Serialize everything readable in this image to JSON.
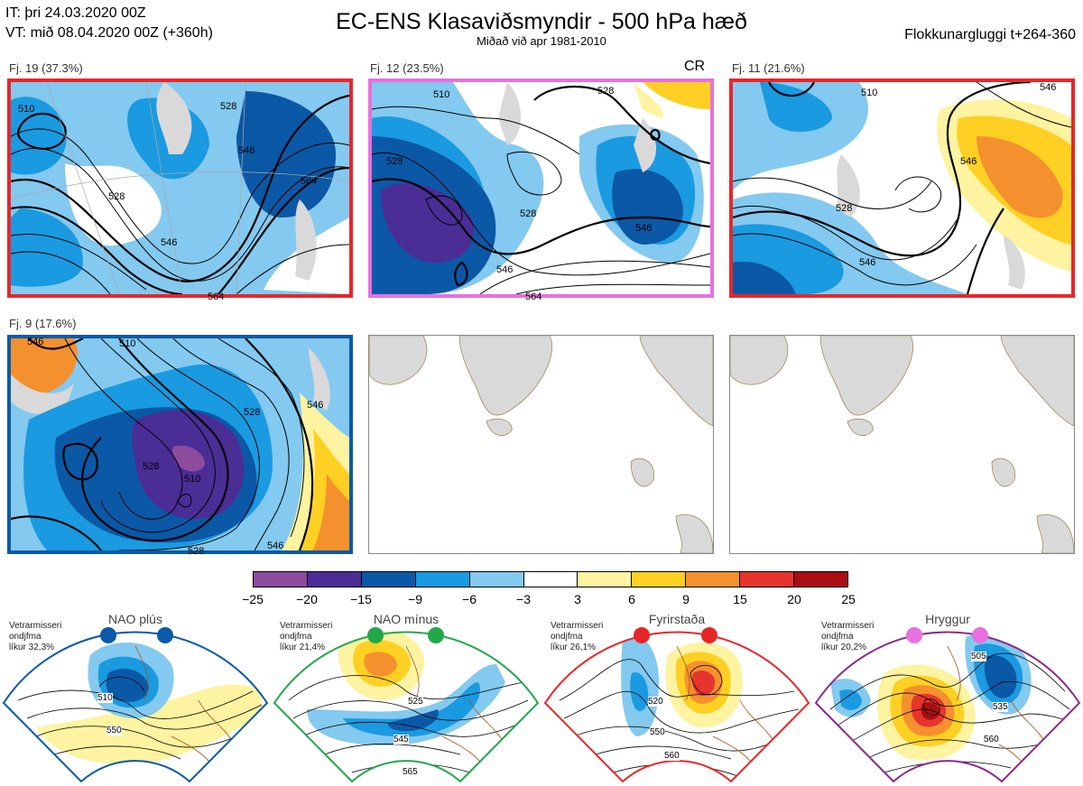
{
  "header": {
    "it_line": "IT: þri 24.03.2020 00Z",
    "vt_line": "VT: mið 08.04.2020 00Z  (+360h)",
    "title": "EC-ENS Klasaviðsmyndir - 500 hPa hæð",
    "subtitle": "Miðað við apr 1981-2010",
    "window": "Flokkunargluggi t+264-360"
  },
  "clusters": [
    {
      "label": "Fj. 19 (37.3%)",
      "frame_color": "#e8262a",
      "contours": [
        "510",
        "528",
        "546",
        "564",
        "528",
        "546",
        "564"
      ],
      "extra": ""
    },
    {
      "label": "Fj. 12 (23.5%)",
      "frame_color": "#e870e0",
      "contours": [
        "510",
        "528",
        "528",
        "528",
        "546",
        "546",
        "564"
      ],
      "extra": "CR"
    },
    {
      "label": "Fj. 11 (21.6%)",
      "frame_color": "#e8262a",
      "contours": [
        "510",
        "546",
        "528",
        "546",
        "546"
      ],
      "extra": ""
    },
    {
      "label": "Fj. 9 (17.6%)",
      "frame_color": "#0a5aa8",
      "contours": [
        "546",
        "510",
        "528",
        "528",
        "510",
        "528",
        "546",
        "546"
      ],
      "extra": ""
    }
  ],
  "colorbar": {
    "colors": [
      "#8e4c9e",
      "#4b2d96",
      "#0b58a6",
      "#1a9ae0",
      "#84c9ef",
      "#ffffff",
      "#fdf3a0",
      "#fdd023",
      "#f5902e",
      "#e8342e",
      "#a80e12"
    ],
    "ticks": [
      "−25",
      "−20",
      "−15",
      "−9",
      "−6",
      "−3",
      "3",
      "6",
      "9",
      "15",
      "20",
      "25"
    ]
  },
  "regimes": [
    {
      "title": "NAO plús",
      "note": [
        "Vetrarmisseri",
        "ondjfma",
        "líkur 32,3%"
      ],
      "dot_color": "#0a5aa8",
      "frame_color": "#0a5aa8",
      "contours": [
        "510",
        "550"
      ]
    },
    {
      "title": "NAO mínus",
      "note": [
        "Vetrarmisseri",
        "ondjfma",
        "líkur 21,4%"
      ],
      "dot_color": "#22a84a",
      "frame_color": "#22a84a",
      "contours": [
        "525",
        "545",
        "565"
      ]
    },
    {
      "title": "Fyrirstaða",
      "note": [
        "Vetrarmisseri",
        "ondjfma",
        "líkur 26,1%"
      ],
      "dot_color": "#e8262a",
      "frame_color": "#e8262a",
      "contours": [
        "520",
        "550",
        "560"
      ]
    },
    {
      "title": "Hryggur",
      "note": [
        "Vetrarmisseri",
        "ondjfma",
        "líkur 20,2%"
      ],
      "dot_color": "#e870e0",
      "frame_color": "#8a2a8a",
      "contours": [
        "505",
        "535",
        "560"
      ]
    }
  ]
}
